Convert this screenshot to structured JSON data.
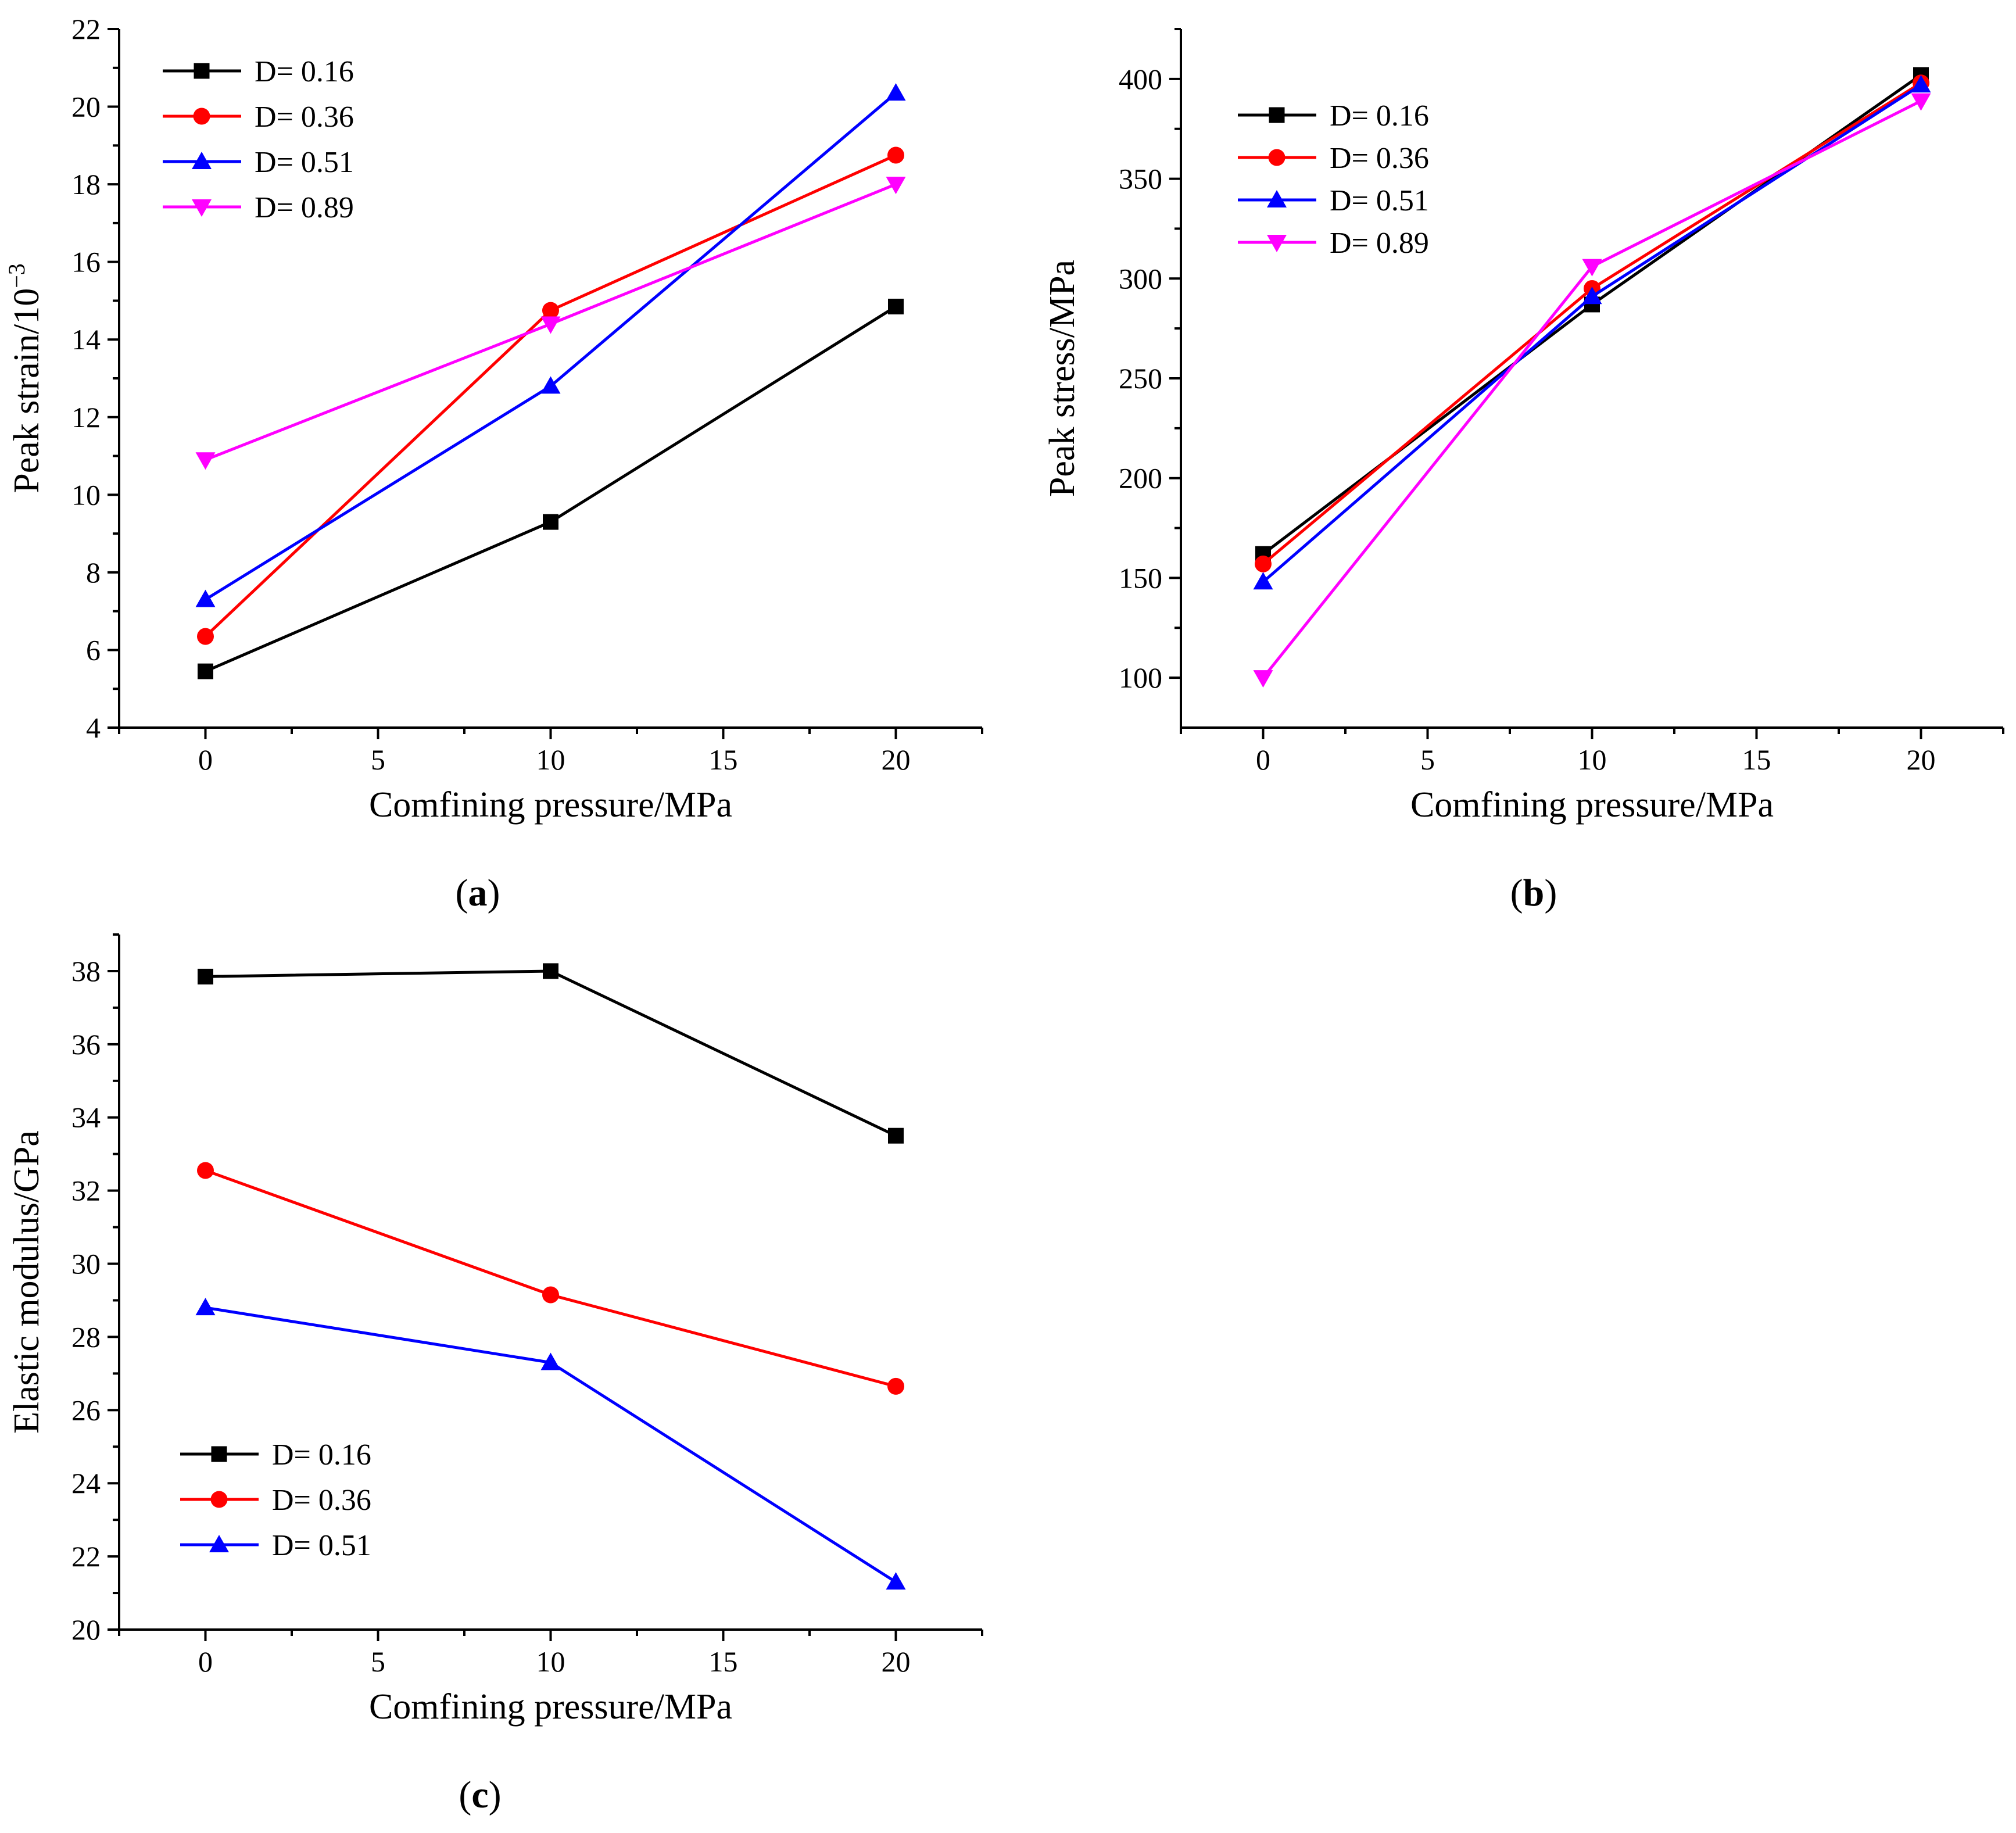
{
  "figure": {
    "panels": [
      {
        "id": "a",
        "caption_open": "(",
        "caption_letter": "a",
        "caption_close": ")"
      },
      {
        "id": "b",
        "caption_open": "(",
        "caption_letter": "b",
        "caption_close": ")"
      },
      {
        "id": "c",
        "caption_open": "(",
        "caption_letter": "c",
        "caption_close": ")"
      }
    ]
  },
  "chart_data": [
    {
      "id": "a",
      "type": "line",
      "title": "",
      "xlabel": "Comfining pressure/MPa",
      "ylabel": "Peak strain/10",
      "ylabel_superscript": "−3",
      "xlim": [
        -2.5,
        22.5
      ],
      "ylim": [
        4,
        22
      ],
      "xticks": [
        0,
        5,
        10,
        15,
        20
      ],
      "yticks": [
        4,
        6,
        8,
        10,
        12,
        14,
        16,
        18,
        20,
        22
      ],
      "x": [
        0,
        10,
        20
      ],
      "legend_position": "top-left",
      "series": [
        {
          "name": "D= 0.16",
          "color": "#000000",
          "marker": "square",
          "values": [
            5.45,
            9.3,
            14.85
          ]
        },
        {
          "name": "D= 0.36",
          "color": "#ff0000",
          "marker": "circle",
          "values": [
            6.35,
            14.75,
            18.75
          ]
        },
        {
          "name": "D= 0.51",
          "color": "#0000ff",
          "marker": "triangle-up",
          "values": [
            7.3,
            12.8,
            20.35
          ]
        },
        {
          "name": "D= 0.89",
          "color": "#ff00ff",
          "marker": "triangle-down",
          "values": [
            10.9,
            14.4,
            18.0
          ]
        }
      ]
    },
    {
      "id": "b",
      "type": "line",
      "title": "",
      "xlabel": "Comfining pressure/MPa",
      "ylabel": "Peak stress/MPa",
      "xlim": [
        -2.5,
        22.5
      ],
      "ylim": [
        75,
        425
      ],
      "xticks": [
        0,
        5,
        10,
        15,
        20
      ],
      "yticks": [
        100,
        150,
        200,
        250,
        300,
        350,
        400
      ],
      "x": [
        0,
        10,
        20
      ],
      "legend_position": "top-left",
      "series": [
        {
          "name": "D= 0.16",
          "color": "#000000",
          "marker": "square",
          "values": [
            162,
            287,
            402
          ]
        },
        {
          "name": "D= 0.36",
          "color": "#ff0000",
          "marker": "circle",
          "values": [
            157,
            295,
            398
          ]
        },
        {
          "name": "D= 0.51",
          "color": "#0000ff",
          "marker": "triangle-up",
          "values": [
            148,
            291,
            397
          ]
        },
        {
          "name": "D= 0.89",
          "color": "#ff00ff",
          "marker": "triangle-down",
          "values": [
            100,
            306,
            389
          ]
        }
      ]
    },
    {
      "id": "c",
      "type": "line",
      "title": "",
      "xlabel": "Comfining pressure/MPa",
      "ylabel": "Elastic modulus/GPa",
      "xlim": [
        -2.5,
        22.5
      ],
      "ylim": [
        20,
        39
      ],
      "xticks": [
        0,
        5,
        10,
        15,
        20
      ],
      "yticks": [
        20,
        22,
        24,
        26,
        28,
        30,
        32,
        34,
        36,
        38
      ],
      "x": [
        0,
        10,
        20
      ],
      "legend_position": "bottom-left",
      "series": [
        {
          "name": "D= 0.16",
          "color": "#000000",
          "marker": "square",
          "values": [
            37.85,
            38.0,
            33.5
          ]
        },
        {
          "name": "D= 0.36",
          "color": "#ff0000",
          "marker": "circle",
          "values": [
            32.55,
            29.15,
            26.65
          ]
        },
        {
          "name": "D= 0.51",
          "color": "#0000ff",
          "marker": "triangle-up",
          "values": [
            28.8,
            27.3,
            21.3
          ]
        }
      ]
    }
  ]
}
